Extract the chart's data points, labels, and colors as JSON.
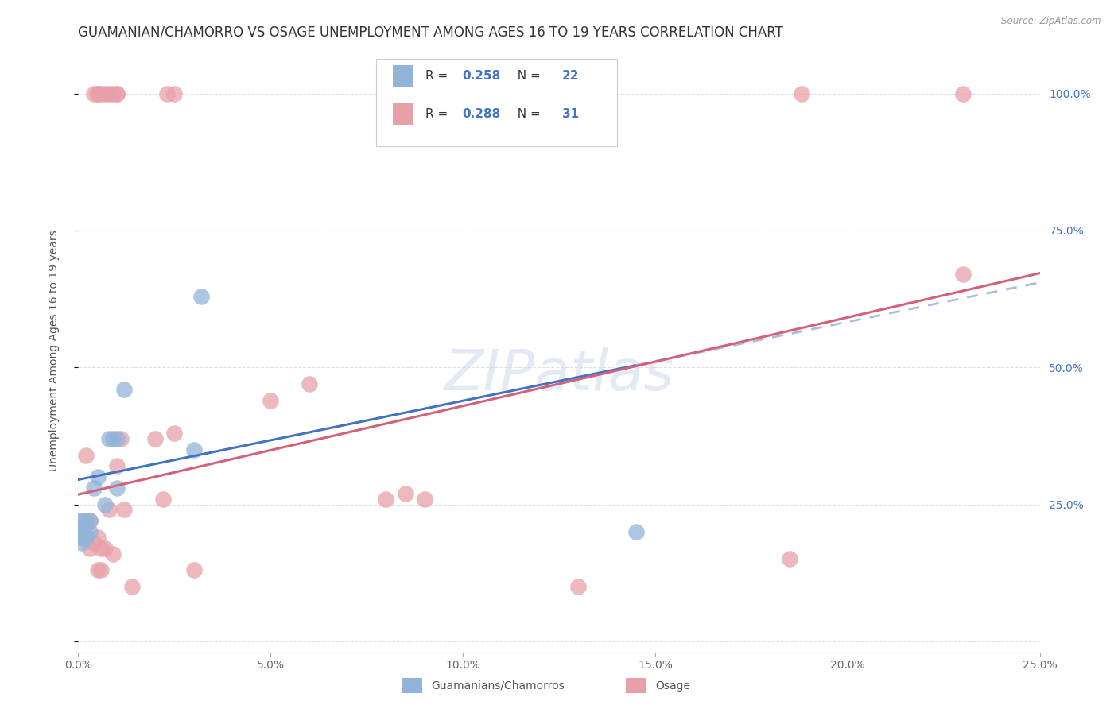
{
  "title": "GUAMANIAN/CHAMORRO VS OSAGE UNEMPLOYMENT AMONG AGES 16 TO 19 YEARS CORRELATION CHART",
  "source": "Source: ZipAtlas.com",
  "ylabel": "Unemployment Among Ages 16 to 19 years",
  "xlim": [
    0.0,
    0.25
  ],
  "ylim": [
    -0.02,
    1.08
  ],
  "x_axis_ticks": [
    0.0,
    0.05,
    0.1,
    0.15,
    0.2,
    0.25
  ],
  "x_tick_labels": [
    "0.0%",
    "5.0%",
    "10.0%",
    "15.0%",
    "20.0%",
    "25.0%"
  ],
  "y_axis_ticks": [
    0.0,
    0.25,
    0.5,
    0.75,
    1.0
  ],
  "y_tick_labels": [
    "",
    "25.0%",
    "50.0%",
    "75.0%",
    "100.0%"
  ],
  "guamanian_x": [
    0.0005,
    0.0005,
    0.0005,
    0.001,
    0.001,
    0.001,
    0.0015,
    0.002,
    0.002,
    0.003,
    0.003,
    0.004,
    0.005,
    0.007,
    0.008,
    0.009,
    0.01,
    0.01,
    0.012,
    0.03,
    0.032,
    0.145
  ],
  "guamanian_y": [
    0.2,
    0.19,
    0.21,
    0.22,
    0.2,
    0.18,
    0.2,
    0.19,
    0.22,
    0.2,
    0.22,
    0.28,
    0.3,
    0.25,
    0.37,
    0.37,
    0.28,
    0.37,
    0.46,
    0.35,
    0.63,
    0.2
  ],
  "osage_x": [
    0.0005,
    0.001,
    0.001,
    0.002,
    0.003,
    0.003,
    0.004,
    0.005,
    0.005,
    0.006,
    0.006,
    0.007,
    0.008,
    0.009,
    0.01,
    0.011,
    0.012,
    0.014,
    0.02,
    0.022,
    0.025,
    0.03,
    0.05,
    0.06,
    0.08,
    0.085,
    0.09,
    0.13,
    0.185,
    0.188,
    0.23
  ],
  "osage_y": [
    0.2,
    0.22,
    0.19,
    0.34,
    0.17,
    0.22,
    0.18,
    0.19,
    0.13,
    0.17,
    0.13,
    0.17,
    0.24,
    0.16,
    0.32,
    0.37,
    0.24,
    0.1,
    0.37,
    0.26,
    0.38,
    0.13,
    0.44,
    0.47,
    0.26,
    0.27,
    0.26,
    0.1,
    0.15,
    1.0,
    0.67
  ],
  "osage_top_x": [
    0.004,
    0.005,
    0.005,
    0.006,
    0.007,
    0.008,
    0.009,
    0.01,
    0.01,
    0.023,
    0.025,
    0.23
  ],
  "osage_top_y": [
    1.0,
    1.0,
    1.0,
    1.0,
    1.0,
    1.0,
    1.0,
    1.0,
    1.0,
    1.0,
    1.0,
    1.0
  ],
  "guamanian_color": "#92b4d9",
  "osage_color": "#e8a0a8",
  "trendline_guamanian_color": "#4472c4",
  "trendline_osage_color": "#d4607a",
  "trendline_guamanian_dashed_color": "#aabbdd",
  "background_color": "#ffffff",
  "grid_color": "#e0e0e0",
  "title_fontsize": 12,
  "axis_label_fontsize": 10,
  "tick_fontsize": 10,
  "watermark": "ZIPatlas"
}
